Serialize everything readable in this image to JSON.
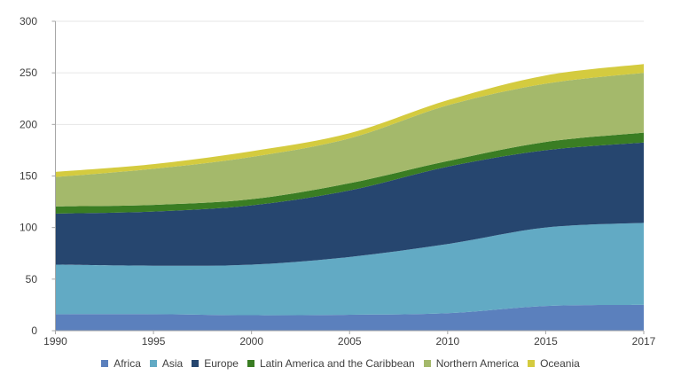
{
  "chart_data": {
    "type": "area",
    "stacked": true,
    "title": "",
    "xlabel": "",
    "ylabel": "",
    "categories": [
      "1990",
      "1995",
      "2000",
      "2005",
      "2010",
      "2015",
      "2017"
    ],
    "ylim": [
      0,
      300
    ],
    "yticks": [
      0,
      50,
      100,
      150,
      200,
      250,
      300
    ],
    "grid": true,
    "legend_position": "bottom",
    "series": [
      {
        "name": "Africa",
        "color": "#5B80BD",
        "values": [
          16,
          16,
          15,
          15.5,
          17,
          24,
          25
        ]
      },
      {
        "name": "Asia",
        "color": "#62AAC4",
        "values": [
          48,
          47,
          49,
          56,
          67,
          76,
          79.5
        ]
      },
      {
        "name": "Europe",
        "color": "#26466F",
        "values": [
          49.5,
          52.5,
          57.5,
          64.5,
          75,
          75,
          78
        ]
      },
      {
        "name": "Latin America and the Caribbean",
        "color": "#3A7D23",
        "values": [
          7,
          6.5,
          6,
          7,
          5.5,
          8,
          9.5
        ]
      },
      {
        "name": "Northern America",
        "color": "#A4B96B",
        "values": [
          28.5,
          35,
          41,
          43.5,
          54,
          56.5,
          58
        ]
      },
      {
        "name": "Oceania",
        "color": "#D4CB3F",
        "values": [
          5,
          4.5,
          5.5,
          5,
          5,
          8,
          8.5
        ]
      }
    ]
  }
}
